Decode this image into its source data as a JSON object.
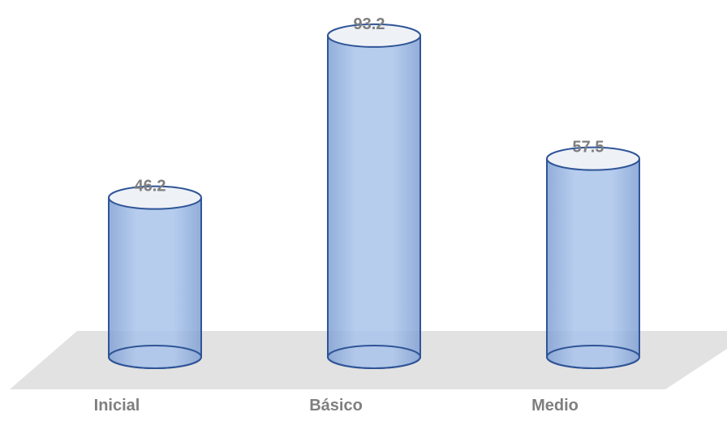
{
  "chart_data": {
    "type": "bar",
    "style": "3d-cylinder",
    "categories": [
      "Inicial",
      "Básico",
      "Medio"
    ],
    "values": [
      46.2,
      93.2,
      57.5
    ],
    "data_labels": [
      "46.2",
      "93.2",
      "57.5"
    ],
    "title": "",
    "xlabel": "",
    "ylabel": "",
    "ylim": [
      0,
      100
    ],
    "grid": false,
    "legend": "none",
    "colors": {
      "bar_fill": "#a9c4eb",
      "bar_edge": "#2f5597",
      "bar_top": "#eef1f6",
      "floor": "#e2e2e2",
      "label": "#7f7f7f"
    }
  }
}
